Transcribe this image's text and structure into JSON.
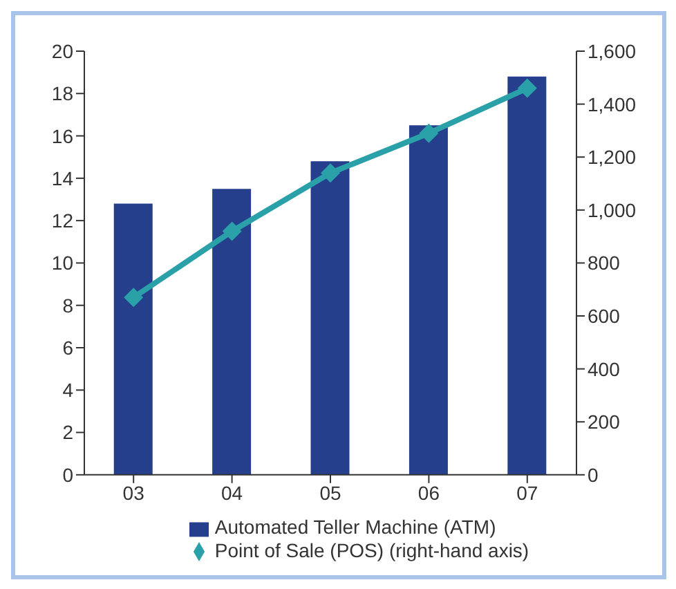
{
  "chart_data": {
    "type": "bar",
    "categories": [
      "03",
      "04",
      "05",
      "06",
      "07"
    ],
    "series": [
      {
        "name": "Automated Teller Machine (ATM)",
        "color": "#253f8c",
        "values": [
          12.8,
          13.5,
          14.8,
          16.5,
          18.8
        ]
      },
      {
        "name": "Point of Sale (POS) (right-hand axis)",
        "type": "line",
        "axis": "y2",
        "color": "#2aa0a8",
        "values": [
          670,
          920,
          1140,
          1290,
          1460
        ]
      }
    ],
    "ylim": [
      0,
      20
    ],
    "yticks": [
      0,
      2,
      4,
      6,
      8,
      10,
      12,
      14,
      16,
      18,
      20
    ],
    "y2lim": [
      0,
      1600
    ],
    "y2ticks": [
      0,
      200,
      400,
      600,
      800,
      {
        "value": 1000,
        "label": "1,000"
      },
      {
        "value": 1200,
        "label": "1,200"
      },
      {
        "value": 1400,
        "label": "1,400"
      },
      {
        "value": 1600,
        "label": "1,600"
      }
    ],
    "marker": "diamond",
    "legend": "bottom",
    "grid": false
  }
}
